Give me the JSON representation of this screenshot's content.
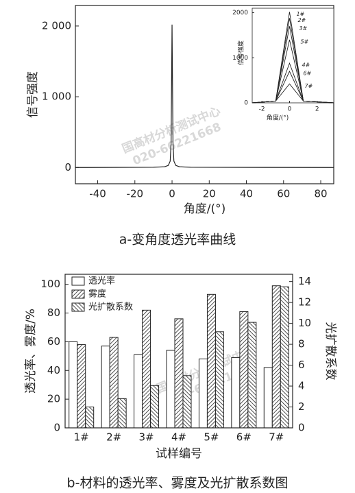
{
  "chart_data": [
    {
      "type": "line",
      "y_label": "信号强度",
      "x_label": "角度/(°)",
      "caption": "a-变角度透光率曲线",
      "x": [
        -52,
        -10,
        -4,
        -2,
        -1,
        -0.5,
        0,
        0.5,
        1,
        2,
        4,
        10,
        87
      ],
      "values": [
        0,
        3,
        10,
        30,
        90,
        350,
        2020,
        350,
        90,
        30,
        10,
        3,
        0
      ],
      "color": "#222222",
      "xlim": [
        -52,
        87
      ],
      "ylim": [
        -230,
        2290
      ],
      "xticks": [
        -40,
        -20,
        0,
        20,
        40,
        60,
        80
      ],
      "yticks": [
        0,
        {
          "value": 1000,
          "label": "1 000"
        },
        {
          "value": 2000,
          "label": "2 000"
        }
      ]
    },
    {
      "type": "line",
      "y_label": "信号强度",
      "x_label": "角度/(°)",
      "x": [
        -2.7,
        -1,
        0,
        1,
        3.2
      ],
      "series": [
        {
          "name": "1#",
          "color": "#222222",
          "values": [
            0,
            40,
            2020,
            40,
            0
          ]
        },
        {
          "name": "2#",
          "color": "#222222",
          "values": [
            0,
            40,
            1880,
            40,
            0
          ]
        },
        {
          "name": "3#",
          "color": "#222222",
          "values": [
            0,
            40,
            1700,
            40,
            0
          ]
        },
        {
          "name": "5#",
          "color": "#222222",
          "values": [
            0,
            40,
            1400,
            40,
            0
          ]
        },
        {
          "name": "4#",
          "color": "#222222",
          "values": [
            0,
            40,
            880,
            40,
            0
          ]
        },
        {
          "name": "6#",
          "color": "#222222",
          "values": [
            0,
            40,
            700,
            40,
            0
          ]
        },
        {
          "name": "7#",
          "color": "#222222",
          "values": [
            0,
            40,
            420,
            40,
            0
          ]
        }
      ],
      "xlim": [
        -2.7,
        3.2
      ],
      "ylim": [
        0,
        2100
      ],
      "xticks": [
        -2,
        0,
        2
      ],
      "yticks": [
        0,
        1000,
        2000
      ]
    },
    {
      "type": "bar",
      "y_label": "透光率、雾度/%",
      "y2_label": "光扩散系数",
      "x_label": "试样编号",
      "caption": "b-材料的透光率、雾度及光扩散系数图",
      "categories": [
        "1#",
        "2#",
        "3#",
        "4#",
        "5#",
        "6#",
        "7#"
      ],
      "series": [
        {
          "name": "透光率",
          "color": "#ffffff",
          "hatch": "none",
          "values": [
            60,
            57,
            51,
            54,
            48,
            49,
            42
          ]
        },
        {
          "name": "雾度",
          "color": "#ffffff",
          "hatch": "forward",
          "values": [
            58,
            63,
            82,
            76,
            93,
            81,
            99
          ]
        },
        {
          "name": "光扩散系数",
          "color": "#ffffff",
          "hatch": "backward",
          "axis": "y2",
          "values": [
            2.0,
            2.8,
            4.05,
            5.0,
            9.2,
            10.1,
            13.5
          ]
        }
      ],
      "ylim": [
        0,
        107
      ],
      "yticks": [
        0,
        20,
        40,
        60,
        80,
        100
      ],
      "y2lim": [
        0,
        14.7
      ],
      "y2ticks": [
        0,
        2,
        4,
        6,
        8,
        10,
        12,
        14
      ],
      "legend": "upper-left"
    }
  ],
  "watermark": [
    "国高材分析测试中心",
    "020-66221668"
  ]
}
